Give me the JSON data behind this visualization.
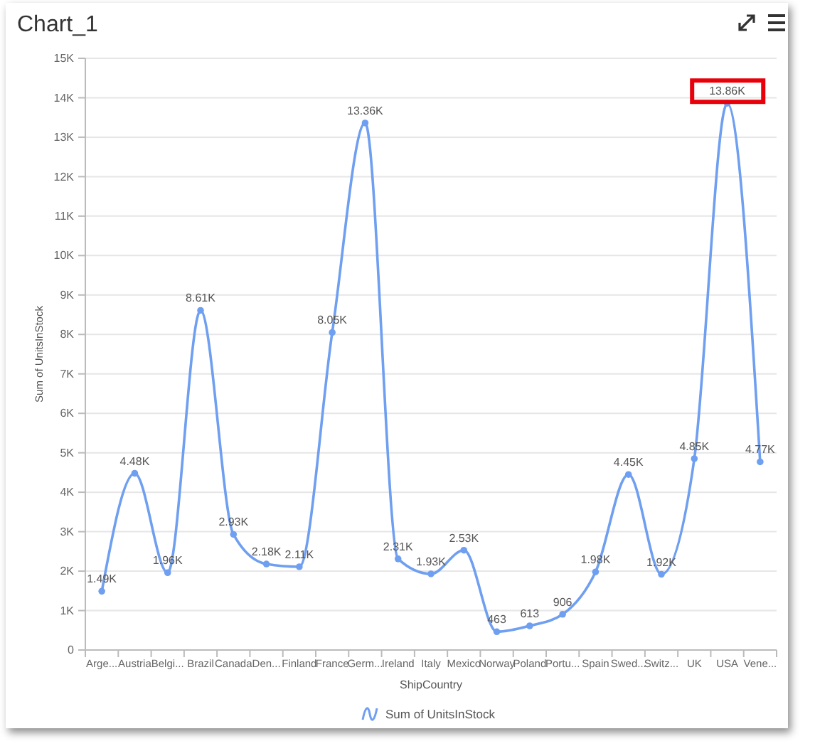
{
  "chart_data": {
    "type": "line",
    "title": "Chart_1",
    "xlabel": "ShipCountry",
    "ylabel": "Sum of UnitsInStock",
    "categories": [
      "Arge...",
      "Austria",
      "Belgi...",
      "Brazil",
      "Canada",
      "Den...",
      "Finland",
      "France",
      "Germ...",
      "Ireland",
      "Italy",
      "Mexico",
      "Norway",
      "Poland",
      "Portu...",
      "Spain",
      "Swed...",
      "Switz...",
      "UK",
      "USA",
      "Vene..."
    ],
    "series": [
      {
        "name": "Sum of UnitsInStock",
        "color": "#6f9ff0",
        "values": [
          1490,
          4480,
          1960,
          8610,
          2930,
          2180,
          2110,
          8050,
          13360,
          2310,
          1930,
          2530,
          463,
          613,
          906,
          1980,
          4450,
          1920,
          4850,
          13860,
          4770
        ],
        "value_labels": [
          "1.49K",
          "4.48K",
          "1.96K",
          "8.61K",
          "2.93K",
          "2.18K",
          "2.11K",
          "8.05K",
          "13.36K",
          "2.31K",
          "1.93K",
          "2.53K",
          "463",
          "613",
          "906",
          "1.98K",
          "4.45K",
          "1.92K",
          "4.85K",
          "13.86K",
          "4.77K"
        ]
      }
    ],
    "ylim": [
      0,
      15000
    ],
    "yticks": [
      {
        "value": 0,
        "label": "0"
      },
      {
        "value": 1000,
        "label": "1K"
      },
      {
        "value": 2000,
        "label": "2K"
      },
      {
        "value": 3000,
        "label": "3K"
      },
      {
        "value": 4000,
        "label": "4K"
      },
      {
        "value": 5000,
        "label": "5K"
      },
      {
        "value": 6000,
        "label": "6K"
      },
      {
        "value": 7000,
        "label": "7K"
      },
      {
        "value": 8000,
        "label": "8K"
      },
      {
        "value": 9000,
        "label": "9K"
      },
      {
        "value": 10000,
        "label": "10K"
      },
      {
        "value": 11000,
        "label": "11K"
      },
      {
        "value": 12000,
        "label": "12K"
      },
      {
        "value": 13000,
        "label": "13K"
      },
      {
        "value": 14000,
        "label": "14K"
      },
      {
        "value": 15000,
        "label": "15K"
      }
    ],
    "grid": "y",
    "legend": "bottom",
    "marker": "circle",
    "line_style": "solid"
  }
}
